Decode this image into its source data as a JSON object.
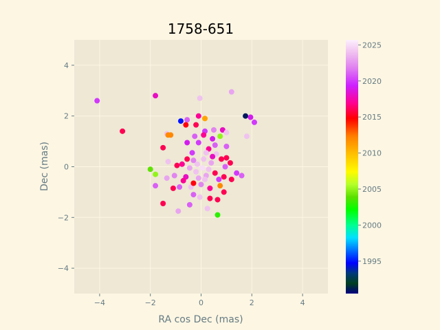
{
  "chart_data": {
    "type": "scatter",
    "title": "1758-651",
    "xlabel": "RA cos Dec (mas)",
    "ylabel": "Dec (mas)",
    "xlim": [
      -5,
      5
    ],
    "ylim": [
      -5,
      5
    ],
    "xticks": [
      -4,
      -2,
      0,
      2,
      4
    ],
    "yticks": [
      -4,
      -2,
      0,
      2,
      4
    ],
    "grid": true,
    "colorbar": {
      "label": "",
      "range": [
        1990.5,
        2025.7
      ],
      "ticks": [
        1995,
        2000,
        2005,
        2010,
        2015,
        2020,
        2025
      ],
      "colormap": "gist_ncar"
    },
    "points": [
      {
        "x": -4.1,
        "y": 2.6,
        "year": 2020
      },
      {
        "x": -3.1,
        "y": 1.4,
        "year": 2016
      },
      {
        "x": -1.8,
        "y": 2.8,
        "year": 2018
      },
      {
        "x": 1.75,
        "y": 2.0,
        "year": 1991
      },
      {
        "x": 2.1,
        "y": 1.75,
        "year": 2020
      },
      {
        "x": 1.95,
        "y": 1.95,
        "year": 2019
      },
      {
        "x": 1.2,
        "y": 2.95,
        "year": 2023
      },
      {
        "x": -0.05,
        "y": 2.7,
        "year": 2024
      },
      {
        "x": -0.1,
        "y": 2.0,
        "year": 2017
      },
      {
        "x": 0.15,
        "y": 1.9,
        "year": 2011
      },
      {
        "x": -0.8,
        "y": 1.8,
        "year": 1995
      },
      {
        "x": -0.55,
        "y": 1.85,
        "year": 2021
      },
      {
        "x": -1.2,
        "y": 1.25,
        "year": 2012
      },
      {
        "x": -1.5,
        "y": 0.75,
        "year": 2016
      },
      {
        "x": 0.75,
        "y": 1.2,
        "year": 2005
      },
      {
        "x": 1.8,
        "y": 1.2,
        "year": 2024
      },
      {
        "x": -2.0,
        "y": -0.1,
        "year": 2004
      },
      {
        "x": -1.8,
        "y": -0.3,
        "year": 2005
      },
      {
        "x": -1.5,
        "y": -1.45,
        "year": 2016
      },
      {
        "x": -1.8,
        "y": -0.75,
        "year": 2021
      },
      {
        "x": 0.65,
        "y": -1.9,
        "year": 2003
      },
      {
        "x": -0.45,
        "y": -1.5,
        "year": 2021
      },
      {
        "x": -0.9,
        "y": -1.75,
        "year": 2023
      },
      {
        "x": 0.25,
        "y": -1.65,
        "year": 2024
      },
      {
        "x": 1.6,
        "y": -0.35,
        "year": 2021
      },
      {
        "x": 1.4,
        "y": -0.25,
        "year": 2020
      },
      {
        "x": 1.0,
        "y": 0.35,
        "year": 2016
      },
      {
        "x": 0.85,
        "y": 1.45,
        "year": 2018
      },
      {
        "x": -0.2,
        "y": 1.65,
        "year": 2016
      },
      {
        "x": 0.15,
        "y": 1.4,
        "year": 2020
      },
      {
        "x": 0.5,
        "y": 1.45,
        "year": 2022
      },
      {
        "x": -0.6,
        "y": 1.65,
        "year": 2015
      },
      {
        "x": -1.35,
        "y": 1.3,
        "year": 2024
      },
      {
        "x": 1.0,
        "y": 1.35,
        "year": 2024
      },
      {
        "x": -0.55,
        "y": 0.95,
        "year": 2019
      },
      {
        "x": -0.1,
        "y": 0.95,
        "year": 2020
      },
      {
        "x": 0.3,
        "y": 0.7,
        "year": 2017
      },
      {
        "x": 0.55,
        "y": 0.85,
        "year": 2021
      },
      {
        "x": 1.0,
        "y": 0.8,
        "year": 2021
      },
      {
        "x": -1.3,
        "y": 0.2,
        "year": 2024
      },
      {
        "x": -0.75,
        "y": 0.1,
        "year": 2017
      },
      {
        "x": -0.3,
        "y": 0.25,
        "year": 2022
      },
      {
        "x": 0.1,
        "y": 0.3,
        "year": 2024
      },
      {
        "x": 0.4,
        "y": 0.15,
        "year": 2023
      },
      {
        "x": 0.8,
        "y": 0.3,
        "year": 2016
      },
      {
        "x": -1.05,
        "y": -0.35,
        "year": 2022
      },
      {
        "x": -0.6,
        "y": -0.4,
        "year": 2018
      },
      {
        "x": -0.2,
        "y": -0.2,
        "year": 2024
      },
      {
        "x": 0.2,
        "y": -0.35,
        "year": 2023
      },
      {
        "x": 0.55,
        "y": -0.25,
        "year": 2016
      },
      {
        "x": 0.9,
        "y": -0.4,
        "year": 2016
      },
      {
        "x": -0.85,
        "y": -0.8,
        "year": 2021
      },
      {
        "x": -0.4,
        "y": -0.8,
        "year": 2024
      },
      {
        "x": 0.0,
        "y": -0.7,
        "year": 2022
      },
      {
        "x": 0.35,
        "y": -0.85,
        "year": 2017
      },
      {
        "x": 0.75,
        "y": -0.75,
        "year": 2012
      },
      {
        "x": -0.3,
        "y": -1.1,
        "year": 2021
      },
      {
        "x": 0.35,
        "y": -1.25,
        "year": 2016
      },
      {
        "x": 0.65,
        "y": -1.3,
        "year": 2016
      },
      {
        "x": -1.1,
        "y": -0.85,
        "year": 2016
      },
      {
        "x": 1.2,
        "y": -0.5,
        "year": 2016
      },
      {
        "x": -1.3,
        "y": 1.25,
        "year": 2012
      },
      {
        "x": 0.1,
        "y": 1.25,
        "year": 2017
      },
      {
        "x": -0.35,
        "y": 0.55,
        "year": 2020
      },
      {
        "x": 0.2,
        "y": 0.55,
        "year": 2024
      },
      {
        "x": 0.6,
        "y": 0.5,
        "year": 2024
      },
      {
        "x": -0.15,
        "y": 0.1,
        "year": 2024
      },
      {
        "x": 0.05,
        "y": -0.05,
        "year": 2025
      },
      {
        "x": 0.3,
        "y": -0.1,
        "year": 2024
      },
      {
        "x": -0.45,
        "y": -0.05,
        "year": 2023
      },
      {
        "x": 0.15,
        "y": -0.5,
        "year": 2024
      },
      {
        "x": -0.1,
        "y": -0.45,
        "year": 2023
      },
      {
        "x": 0.95,
        "y": 0.0,
        "year": 2021
      },
      {
        "x": -0.95,
        "y": 0.05,
        "year": 2016
      },
      {
        "x": 0.45,
        "y": 1.1,
        "year": 2019
      },
      {
        "x": -0.25,
        "y": 1.2,
        "year": 2021
      },
      {
        "x": 1.15,
        "y": 0.15,
        "year": 2016
      },
      {
        "x": -1.35,
        "y": -0.45,
        "year": 2023
      },
      {
        "x": -0.7,
        "y": -0.55,
        "year": 2017
      },
      {
        "x": 0.9,
        "y": -1.0,
        "year": 2016
      },
      {
        "x": -0.05,
        "y": -1.2,
        "year": 2024
      },
      {
        "x": 0.45,
        "y": 0.4,
        "year": 2018
      },
      {
        "x": -0.55,
        "y": 0.3,
        "year": 2016
      },
      {
        "x": 0.7,
        "y": -0.5,
        "year": 2020
      },
      {
        "x": -0.3,
        "y": -0.65,
        "year": 2015
      }
    ]
  }
}
